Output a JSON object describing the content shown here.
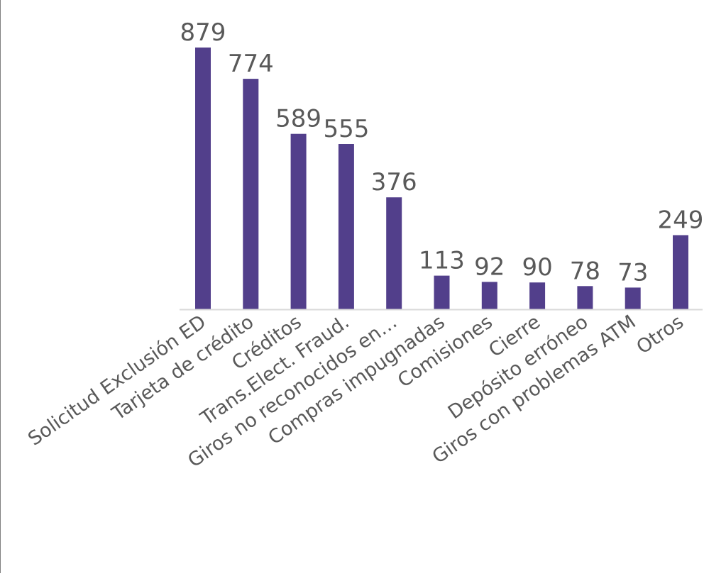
{
  "chart_data": {
    "type": "bar",
    "title": "",
    "xlabel": "",
    "ylabel": "",
    "categories": [
      "Solicitud Exclusión ED",
      "Tarjeta de crédito",
      "Créditos",
      "Trans.Elect. Fraud.",
      "Giros no reconocidos en…",
      "Compras impugnadas",
      "Comisiones",
      "Cierre",
      "Depósito erróneo",
      "Giros con problemas ATM",
      "Otros"
    ],
    "values": [
      879,
      774,
      589,
      555,
      376,
      113,
      92,
      90,
      78,
      73,
      249
    ],
    "value_labels": [
      "879",
      "774",
      "589",
      "555",
      "376",
      "113",
      "92",
      "90",
      "78",
      "73",
      "249"
    ],
    "ylim": [
      0,
      879
    ],
    "grid": false,
    "legend": "none",
    "bar_color": "#523f8b",
    "axis_color": "#d9d9d9",
    "text_color": "#595959"
  }
}
